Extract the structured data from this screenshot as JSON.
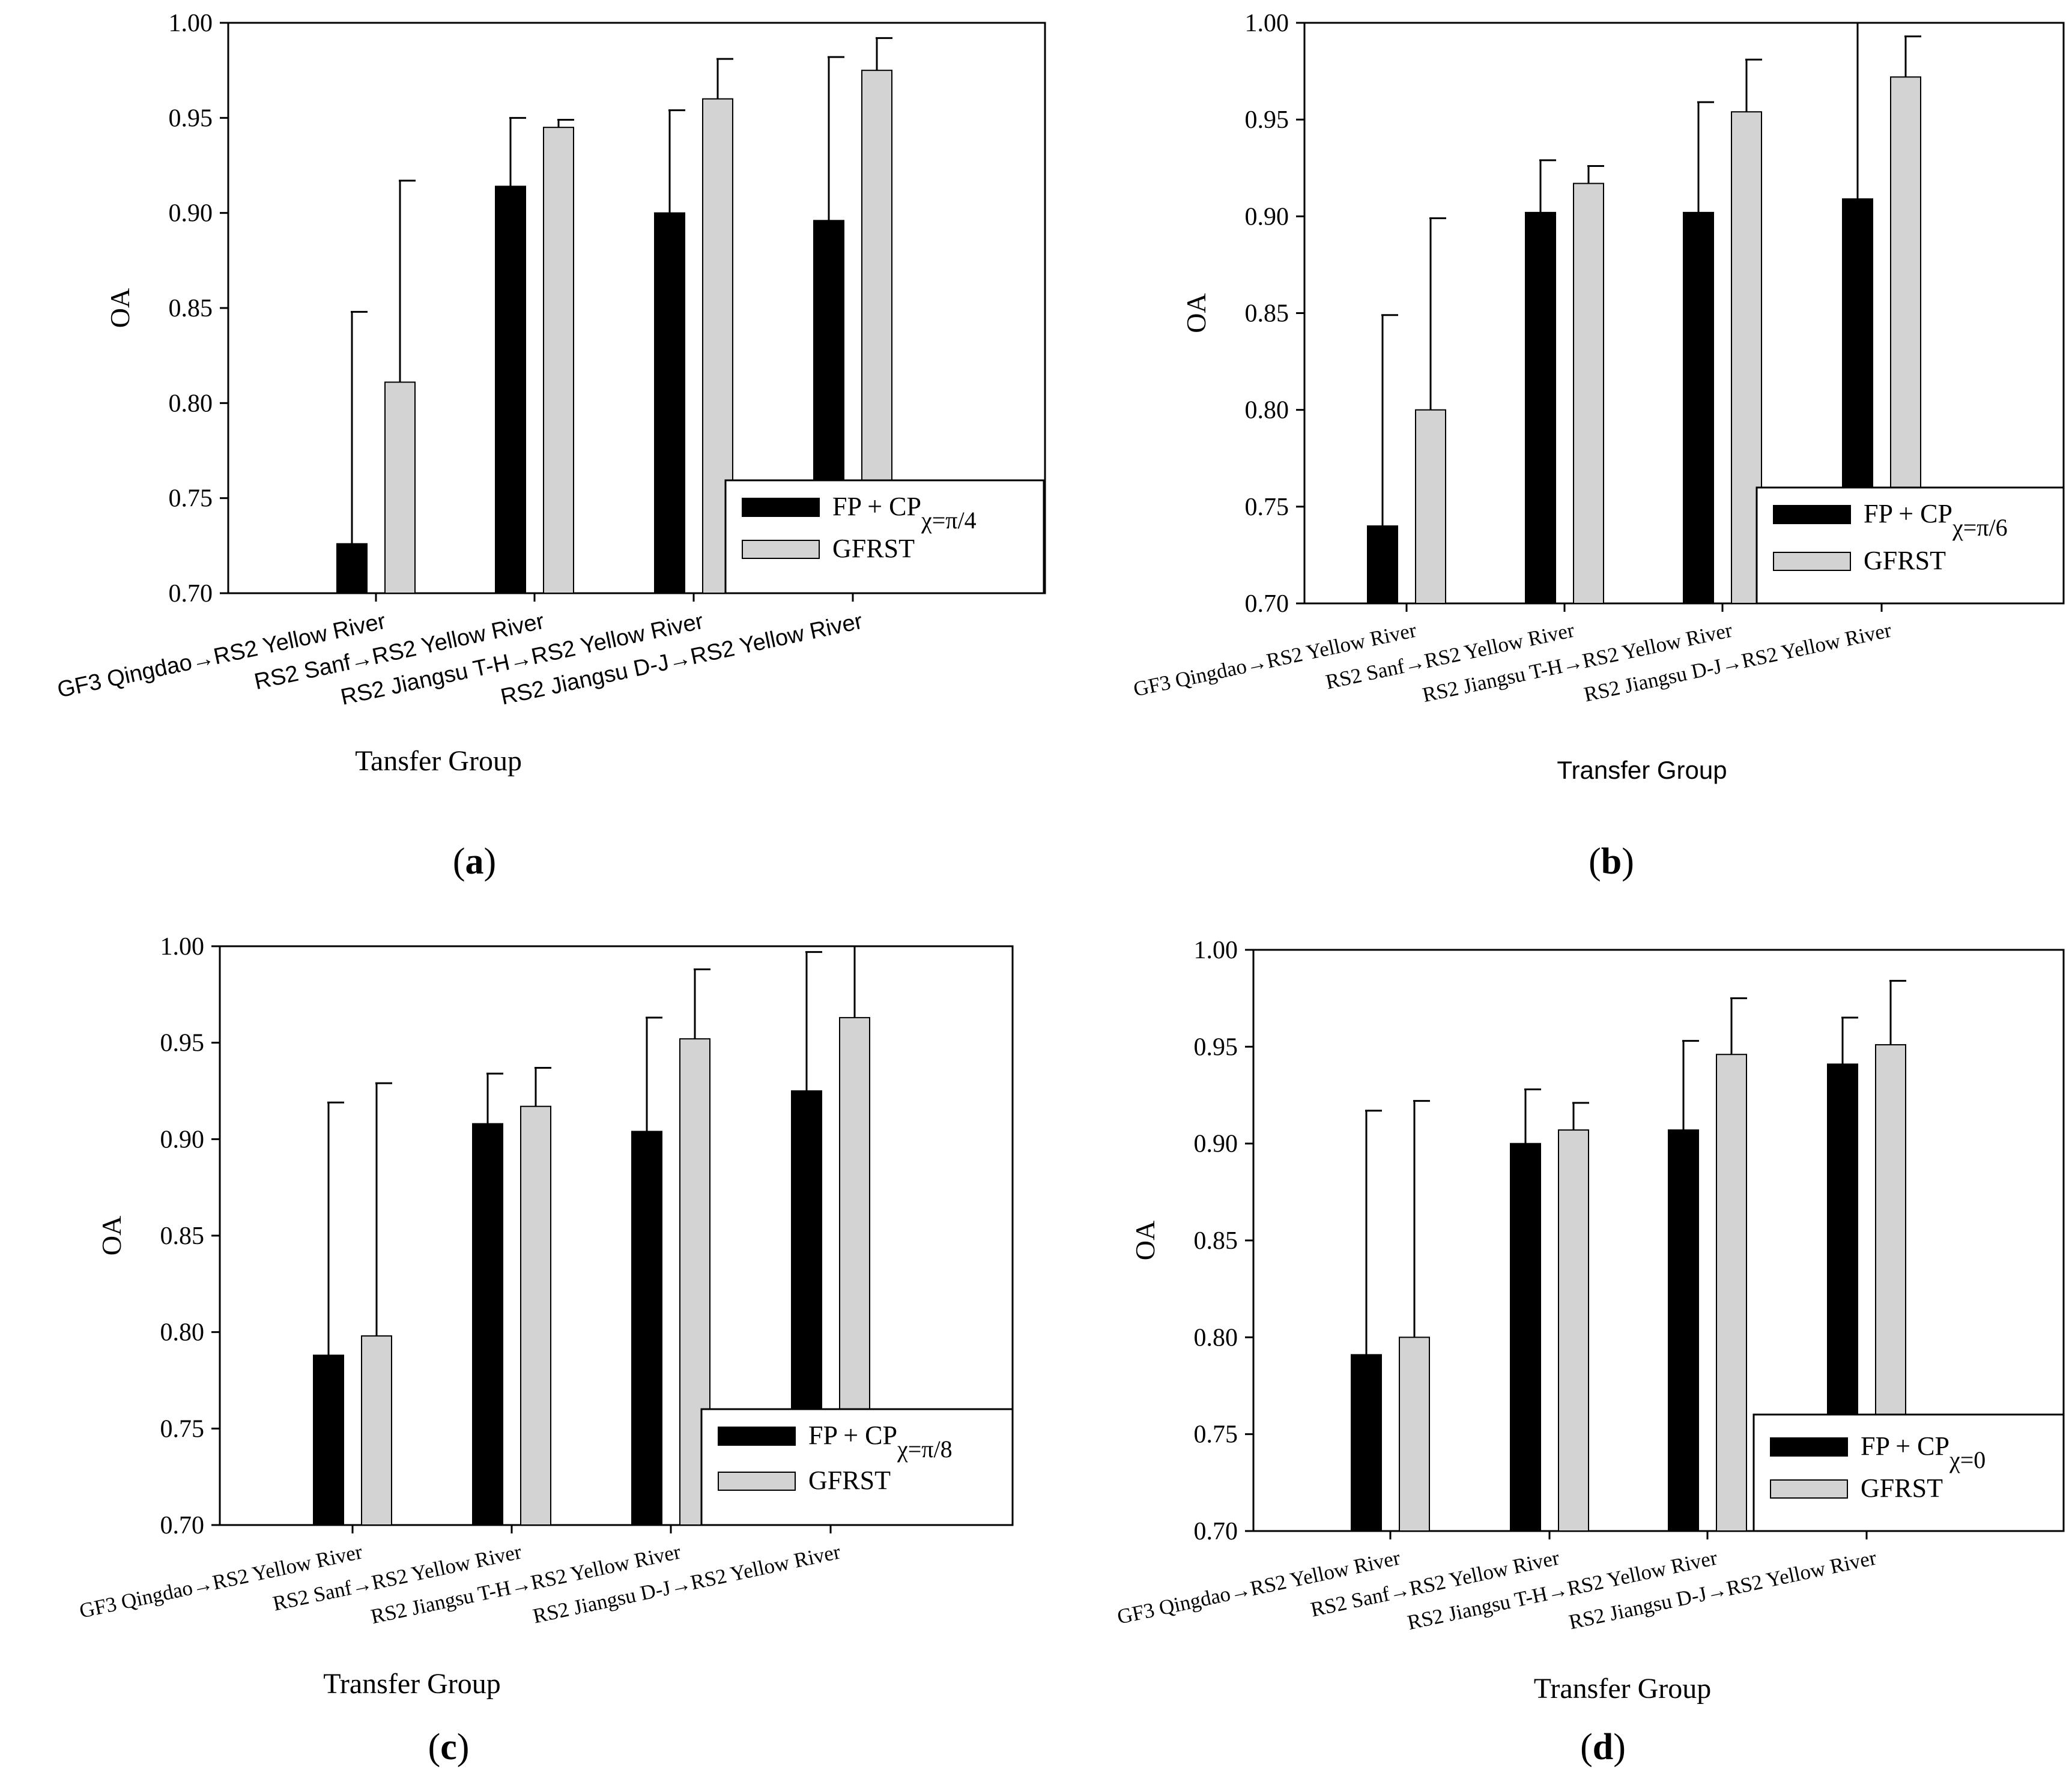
{
  "colors": {
    "fp_cp": "#000000",
    "gfrst": "#d3d3d3",
    "axis": "#000000",
    "background": "#ffffff"
  },
  "chart_data": [
    {
      "type": "bar",
      "panel_label": "(a)",
      "categories": [
        "GF3 Qingdao→RS2 Yellow River",
        "RS2 Sanf→RS2 Yellow River",
        "RS2 Jiangsu T-H→RS2 Yellow River",
        "RS2 Jiangsu D-J→RS2 Yellow River"
      ],
      "series": [
        {
          "name": "FP + CP",
          "legend_sub": "χ=π/4",
          "values": [
            0.726,
            0.914,
            0.9,
            0.896
          ],
          "errors": [
            0.848,
            0.95,
            0.954,
            0.982
          ]
        },
        {
          "name": "GFRST",
          "values": [
            0.811,
            0.945,
            0.96,
            0.975
          ],
          "errors": [
            0.917,
            0.949,
            0.981,
            0.992
          ]
        }
      ],
      "xlabel": "Tansfer Group",
      "ylabel": "OA",
      "ylim": [
        0.7,
        1.0
      ],
      "yticks": [
        "0.70",
        "0.75",
        "0.80",
        "0.85",
        "0.90",
        "0.95",
        "1.00"
      ],
      "legend_position": "lower-right"
    },
    {
      "type": "bar",
      "panel_label": "(b)",
      "categories": [
        "GF3 Qingdao→RS2 Yellow River",
        "RS2 Sanf→RS2 Yellow River",
        "RS2 Jiangsu T-H→RS2 Yellow River",
        "RS2 Jiangsu D-J→RS2 Yellow River"
      ],
      "series": [
        {
          "name": "FP + CP",
          "legend_sub": "χ=π/6",
          "values": [
            0.74,
            0.902,
            0.902,
            0.909
          ],
          "errors": [
            0.849,
            0.929,
            0.959,
            1.0
          ]
        },
        {
          "name": "GFRST",
          "values": [
            0.8,
            0.917,
            0.954,
            0.972
          ],
          "errors": [
            0.899,
            0.926,
            0.981,
            0.993
          ]
        }
      ],
      "xlabel": "Transfer Group",
      "ylabel": "OA",
      "ylim": [
        0.7,
        1.0
      ],
      "yticks": [
        "0.70",
        "0.75",
        "0.80",
        "0.85",
        "0.90",
        "0.95",
        "1.00"
      ],
      "legend_position": "lower-right"
    },
    {
      "type": "bar",
      "panel_label": "(c)",
      "categories": [
        "GF3 Qingdao→RS2 Yellow River",
        "RS2 Sanf→RS2 Yellow River",
        "RS2 Jiangsu T-H→RS2 Yellow River",
        "RS2 Jiangsu D-J→RS2 Yellow River"
      ],
      "series": [
        {
          "name": "FP + CP",
          "legend_sub": "χ=π/8",
          "values": [
            0.788,
            0.908,
            0.904,
            0.925
          ],
          "errors": [
            0.919,
            0.934,
            0.963,
            0.997
          ]
        },
        {
          "name": "GFRST",
          "values": [
            0.798,
            0.917,
            0.952,
            0.963
          ],
          "errors": [
            0.929,
            0.937,
            0.988,
            1.0
          ]
        }
      ],
      "xlabel": "Transfer Group",
      "ylabel": "OA",
      "ylim": [
        0.7,
        1.0
      ],
      "yticks": [
        "0.70",
        "0.75",
        "0.80",
        "0.85",
        "0.90",
        "0.95",
        "1.00"
      ],
      "legend_position": "lower-right"
    },
    {
      "type": "bar",
      "panel_label": "(d)",
      "categories": [
        "GF3 Qingdao→RS2 Yellow River",
        "RS2 Sanf→RS2 Yellow River",
        "RS2 Jiangsu T-H→RS2 Yellow River",
        "RS2 Jiangsu D-J→RS2 Yellow River"
      ],
      "series": [
        {
          "name": "FP + CP",
          "legend_sub": "χ=0",
          "values": [
            0.791,
            0.9,
            0.907,
            0.941
          ],
          "errors": [
            0.917,
            0.928,
            0.953,
            0.965
          ]
        },
        {
          "name": "GFRST",
          "values": [
            0.8,
            0.907,
            0.946,
            0.951
          ],
          "errors": [
            0.922,
            0.921,
            0.975,
            0.984
          ]
        }
      ],
      "xlabel": "Transfer Group",
      "ylabel": "OA",
      "ylim": [
        0.7,
        1.0
      ],
      "yticks": [
        "0.70",
        "0.75",
        "0.80",
        "0.85",
        "0.90",
        "0.95",
        "1.00"
      ],
      "legend_position": "lower-right"
    }
  ]
}
